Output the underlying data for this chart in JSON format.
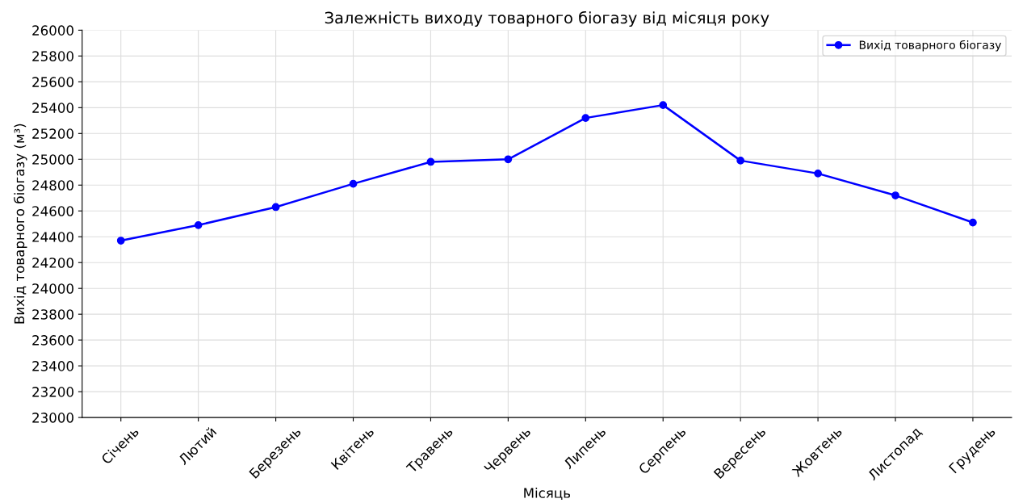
{
  "chart_data": {
    "type": "line",
    "title": "Залежність виходу товарного біогазу від місяця року",
    "xlabel": "Місяць",
    "ylabel": "Вихід товарного біогазу (м³)",
    "categories": [
      "Січень",
      "Лютий",
      "Березень",
      "Квітень",
      "Травень",
      "Червень",
      "Липень",
      "Серпень",
      "Вересень",
      "Жовтень",
      "Листопад",
      "Грудень"
    ],
    "series": [
      {
        "name": "Вихід товарного біогазу",
        "color": "#0000ff",
        "values": [
          24370,
          24490,
          24630,
          24810,
          24980,
          25000,
          25320,
          25420,
          24990,
          24890,
          24720,
          24510
        ]
      }
    ],
    "ylim": [
      23000,
      26000
    ],
    "yticks": [
      23000,
      23200,
      23400,
      23600,
      23800,
      24000,
      24200,
      24400,
      24600,
      24800,
      25000,
      25200,
      25400,
      25600,
      25800,
      26000
    ],
    "grid": true,
    "legend": "top right",
    "marker": "circle",
    "line_style": "solid"
  }
}
